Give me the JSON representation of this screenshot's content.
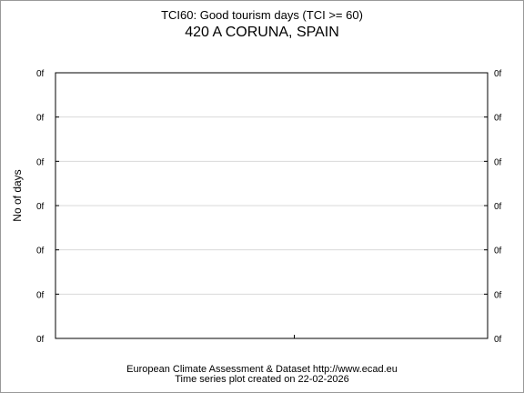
{
  "chart_data": {
    "type": "line",
    "title": "TCI60: Good tourism days (TCI >= 60)",
    "subtitle": "420 A CORUNA, SPAIN",
    "ylabel": "No of days",
    "xlabel": "",
    "y_tick_labels": [
      "0f",
      "0f",
      "0f",
      "0f",
      "0f",
      "0f",
      "0f"
    ],
    "x_tick_labels": [],
    "series": [],
    "grid": true,
    "legend": "none"
  },
  "footer": {
    "line1": "European Climate Assessment & Dataset  http://www.ecad.eu",
    "line2": "Time series plot created on 22-02-2026"
  }
}
